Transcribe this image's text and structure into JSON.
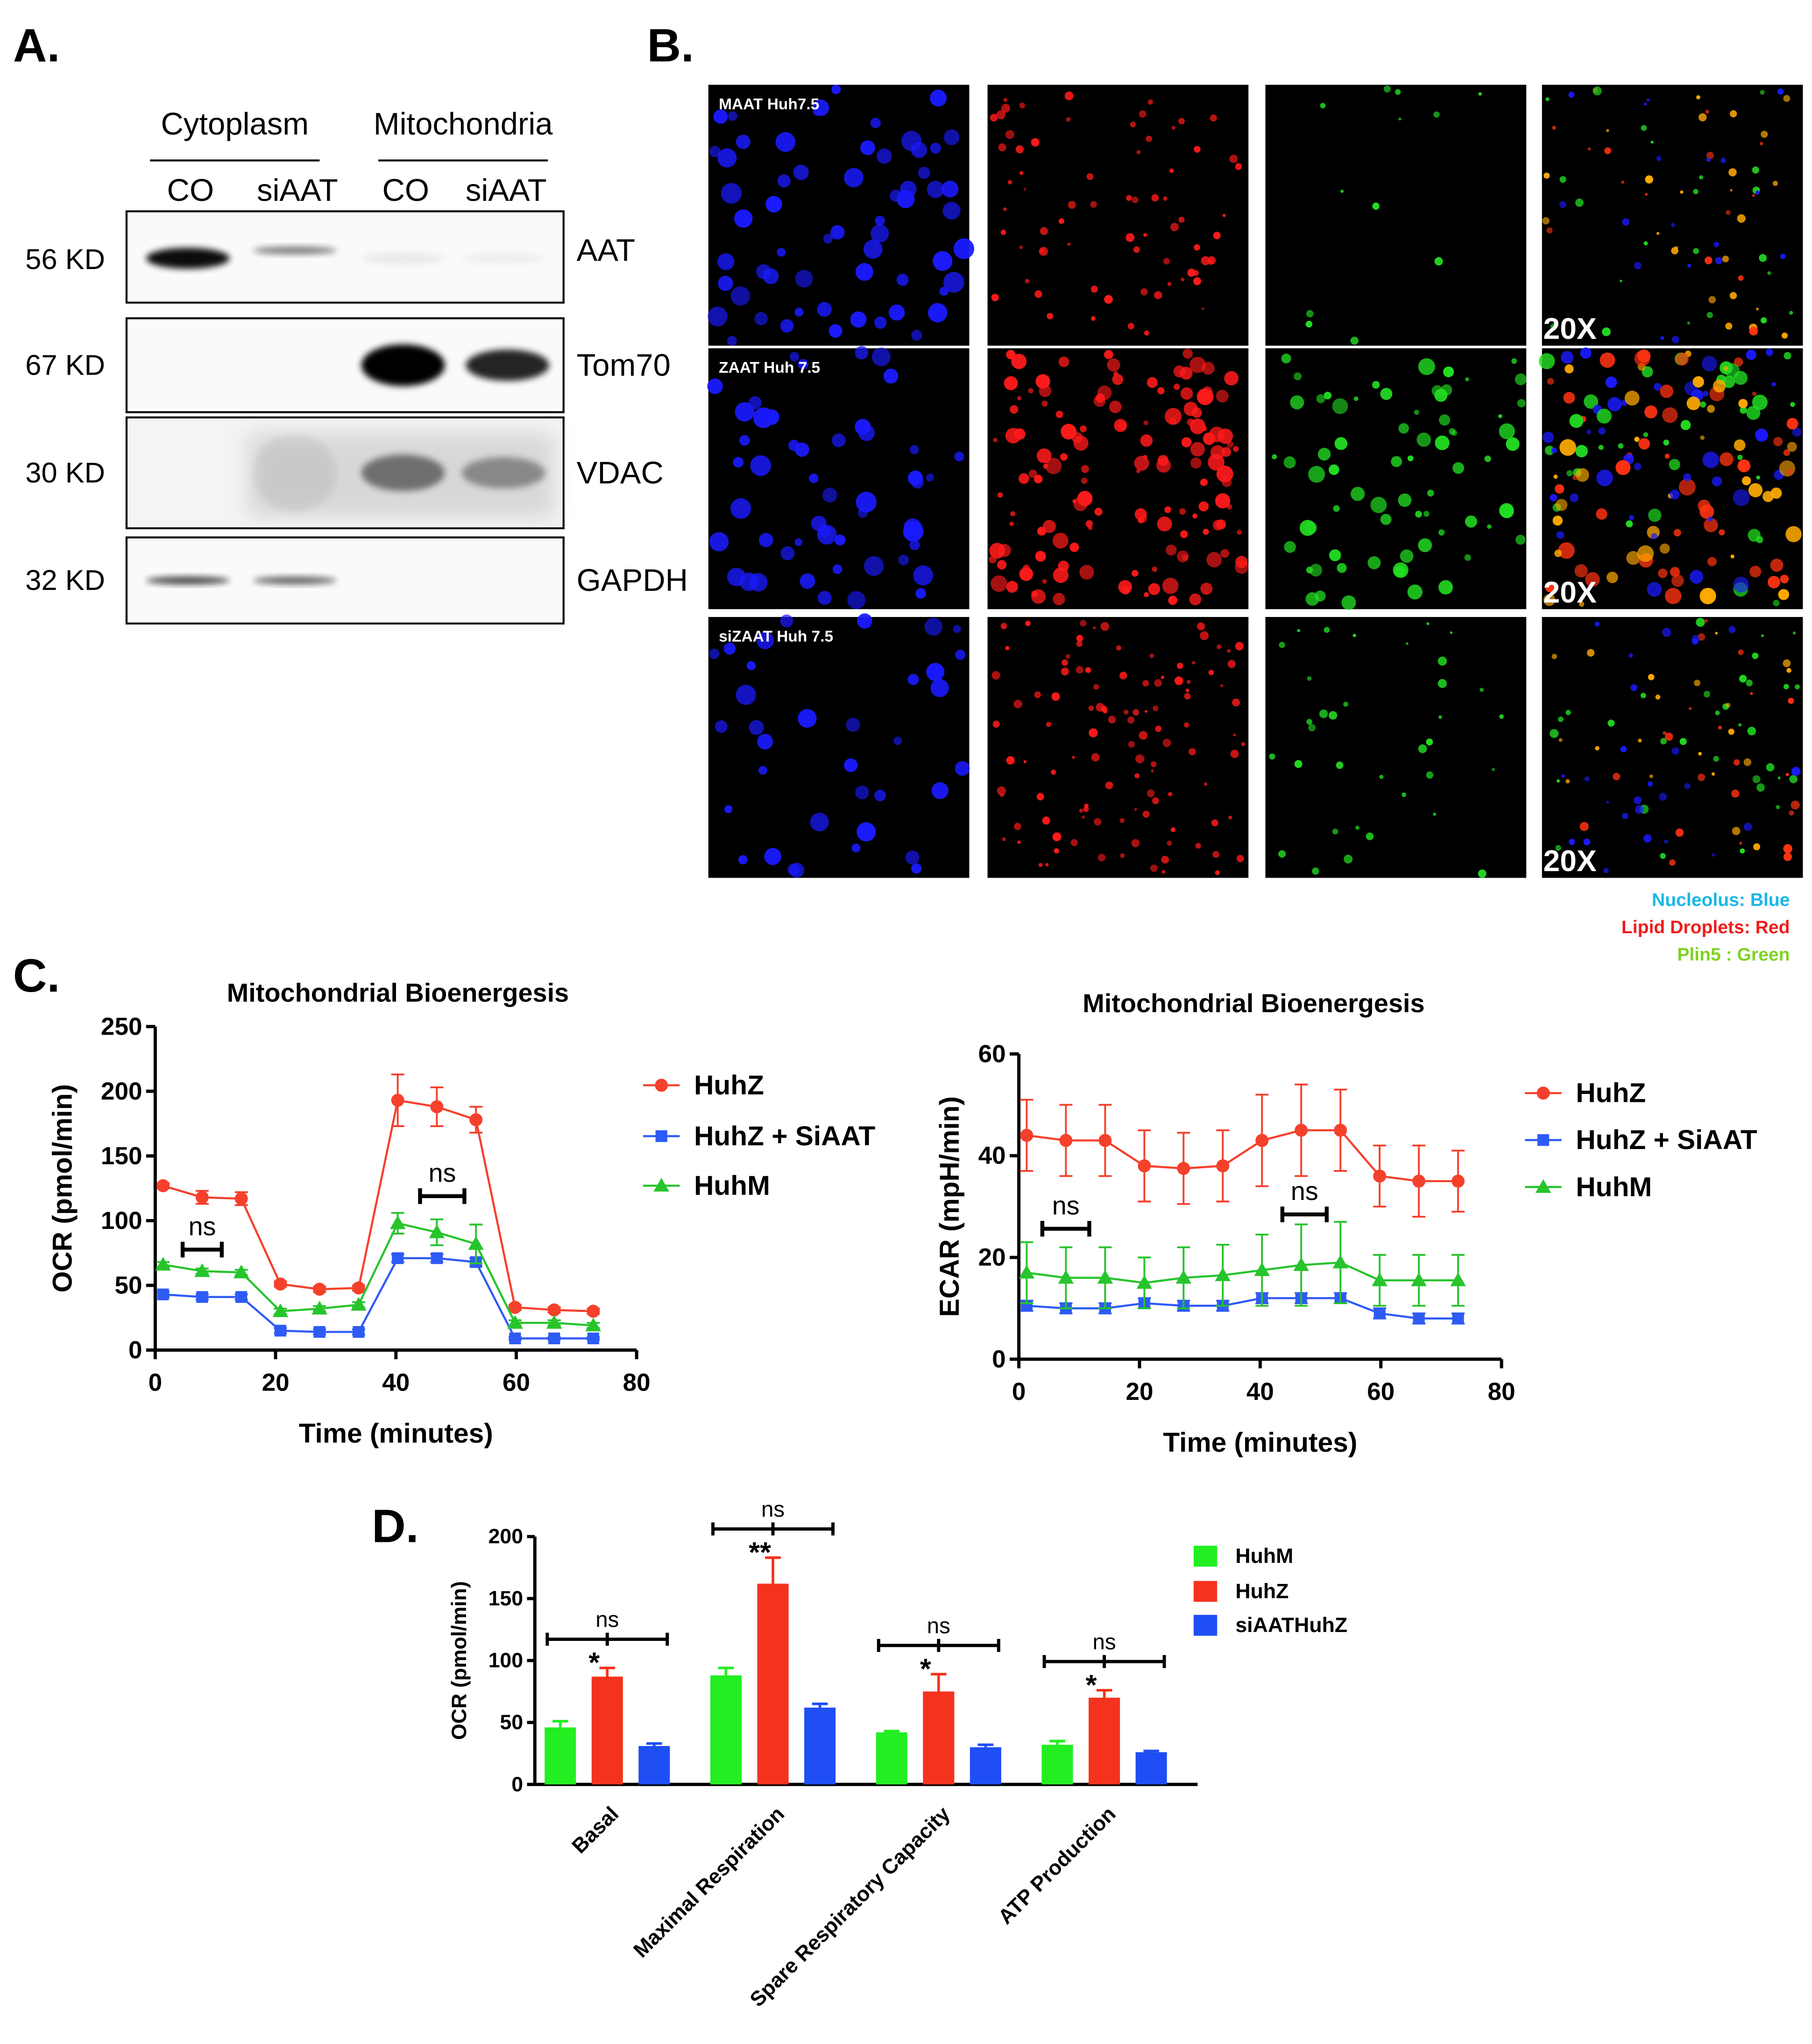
{
  "panel_a": {
    "label": "A.",
    "groups": [
      "Cytoplasm",
      "Mitochondria"
    ],
    "lanes": [
      "CO",
      "siAAT",
      "CO",
      "siAAT"
    ],
    "rows": [
      {
        "size": "56 KD",
        "protein": "AAT"
      },
      {
        "size": "67 KD",
        "protein": "Tom70"
      },
      {
        "size": "30 KD",
        "protein": "VDAC"
      },
      {
        "size": "32 KD",
        "protein": "GAPDH"
      }
    ]
  },
  "panel_b": {
    "label": "B.",
    "rows": [
      "MAAT Huh7.5",
      "ZAAT Huh 7.5",
      "siZAAT Huh 7.5"
    ],
    "magnification": [
      "20X",
      "20X",
      "20X"
    ],
    "legend": [
      {
        "text": "Nucleolus: Blue",
        "color": "#19b8e6"
      },
      {
        "text": "Lipid Droplets: Red",
        "color": "#f01c1c"
      },
      {
        "text": "Plin5 : Green",
        "color": "#7ed321"
      }
    ]
  },
  "panel_c_label": "C.",
  "panel_d_label": "D.",
  "chart_data": [
    {
      "type": "line",
      "title": "Mitochondrial Bioenergesis",
      "xlabel": "Time (minutes)",
      "ylabel": "OCR (pmol/min)",
      "x": [
        1.3,
        7.8,
        14.3,
        20.8,
        27.3,
        33.8,
        40.3,
        46.8,
        53.3,
        59.8,
        66.3,
        72.8
      ],
      "series": [
        {
          "name": "HuhZ",
          "color": "#f5402c",
          "marker": "circle",
          "values": [
            127,
            118,
            117,
            51,
            47,
            48,
            193,
            188,
            178,
            33,
            31,
            30
          ],
          "errors": [
            2,
            5,
            5,
            2,
            2,
            2,
            20,
            15,
            10,
            2,
            2,
            2
          ]
        },
        {
          "name": "HuhZ + SiAAT",
          "color": "#2e5bf5",
          "marker": "square",
          "values": [
            43,
            41,
            41,
            15,
            14,
            14,
            71,
            71,
            68,
            9,
            9,
            9
          ],
          "errors": [
            2,
            2,
            2,
            2,
            2,
            2,
            3,
            3,
            3,
            1,
            1,
            1
          ]
        },
        {
          "name": "HuhM",
          "color": "#27c42c",
          "marker": "triangle",
          "values": [
            66,
            61,
            60,
            30,
            32,
            35,
            98,
            91,
            82,
            21,
            21,
            19
          ],
          "errors": [
            2,
            2,
            2,
            2,
            2,
            2,
            8,
            10,
            15,
            2,
            2,
            2
          ]
        }
      ],
      "xlim": [
        0,
        80
      ],
      "xticks": [
        0,
        20,
        40,
        60,
        80
      ],
      "ylim": [
        0,
        250
      ],
      "yticks": [
        0,
        50,
        100,
        150,
        200,
        250
      ],
      "annotations": [
        "ns",
        "ns"
      ]
    },
    {
      "type": "line",
      "title": "Mitochondrial Bioenergesis",
      "xlabel": "Time (minutes)",
      "ylabel": "ECAR (mpH/min)",
      "x": [
        1.3,
        7.8,
        14.3,
        20.8,
        27.3,
        33.8,
        40.3,
        46.8,
        53.3,
        59.8,
        66.3,
        72.8
      ],
      "series": [
        {
          "name": "HuhZ",
          "color": "#f5402c",
          "marker": "circle",
          "values": [
            44,
            43,
            43,
            38,
            37.5,
            38,
            43,
            45,
            45,
            36,
            35,
            35
          ],
          "errors": [
            7,
            7,
            7,
            7,
            7,
            7,
            9,
            9,
            8,
            6,
            7,
            6
          ]
        },
        {
          "name": "HuhZ + SiAAT",
          "color": "#2e5bf5",
          "marker": "square",
          "values": [
            10.5,
            10,
            10,
            11,
            10.5,
            10.5,
            12,
            12,
            12,
            9,
            8,
            8
          ],
          "errors": [
            1,
            1,
            1,
            1,
            1,
            1,
            1,
            1,
            1,
            1,
            1,
            1
          ]
        },
        {
          "name": "HuhM",
          "color": "#27c42c",
          "marker": "triangle",
          "values": [
            17,
            16,
            16,
            15,
            16,
            16.5,
            17.5,
            18.5,
            19,
            15.5,
            15.5,
            15.5
          ],
          "errors": [
            6,
            6,
            6,
            5,
            6,
            6,
            7,
            8,
            8,
            5,
            5,
            5
          ]
        }
      ],
      "xlim": [
        0,
        80
      ],
      "xticks": [
        0,
        20,
        40,
        60,
        80
      ],
      "ylim": [
        0,
        60
      ],
      "yticks": [
        0,
        20,
        40,
        60
      ],
      "annotations": [
        "ns",
        "ns"
      ]
    },
    {
      "type": "bar",
      "ylabel": "OCR (pmol/min)",
      "categories": [
        "Basal",
        "Maximal Respiration",
        "Spare Respiratory Capacity",
        "ATP Production"
      ],
      "series": [
        {
          "name": "HuhM",
          "color": "#22ee22",
          "values": [
            46,
            88,
            42,
            32
          ],
          "errors": [
            5,
            6,
            1,
            3
          ]
        },
        {
          "name": "HuhZ",
          "color": "#f5321e",
          "values": [
            87,
            162,
            75,
            70
          ],
          "errors": [
            7,
            21,
            14,
            6
          ]
        },
        {
          "name": "siAATHuhZ",
          "color": "#1f4ef5",
          "values": [
            31,
            62,
            30,
            26
          ],
          "errors": [
            2,
            3,
            2,
            1
          ]
        }
      ],
      "ylim": [
        0,
        200
      ],
      "yticks": [
        0,
        50,
        100,
        150,
        200
      ],
      "significance": [
        "*",
        "**",
        "*",
        "*"
      ],
      "comparison": [
        "ns",
        "ns",
        "ns",
        "ns"
      ]
    }
  ]
}
